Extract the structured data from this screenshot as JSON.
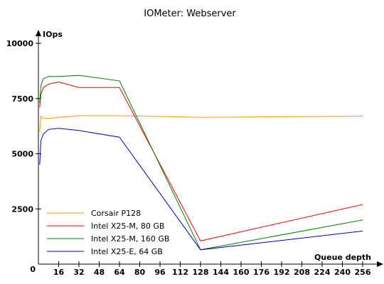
{
  "chart_data": {
    "type": "line",
    "title": "IOMeter: Webserver",
    "ylabel": "IOps",
    "xlabel": "Queue depth",
    "x_ticks": [
      0,
      16,
      32,
      48,
      64,
      80,
      96,
      112,
      128,
      144,
      160,
      176,
      192,
      208,
      224,
      240,
      256
    ],
    "y_ticks": [
      0,
      2500,
      5000,
      7500,
      10000
    ],
    "xlim": [
      0,
      262
    ],
    "ylim": [
      0,
      10000
    ],
    "grid": false,
    "legend_position": "bottom-left",
    "series": [
      {
        "name": "Corsair P128",
        "color": "#ff9900",
        "points": [
          [
            1,
            6000
          ],
          [
            2,
            6700
          ],
          [
            4,
            6600
          ],
          [
            8,
            6600
          ],
          [
            16,
            6650
          ],
          [
            32,
            6720
          ],
          [
            64,
            6720
          ],
          [
            128,
            6650
          ],
          [
            256,
            6700
          ]
        ]
      },
      {
        "name": "Intel X25-M, 80 GB",
        "color": "#ff0000",
        "points": [
          [
            1,
            7100
          ],
          [
            2,
            7700
          ],
          [
            4,
            8000
          ],
          [
            8,
            8150
          ],
          [
            16,
            8250
          ],
          [
            32,
            8000
          ],
          [
            64,
            8000
          ],
          [
            128,
            1050
          ],
          [
            256,
            2700
          ]
        ]
      },
      {
        "name": "Intel X25-M, 160 GB",
        "color": "#008000",
        "points": [
          [
            1,
            7300
          ],
          [
            2,
            8100
          ],
          [
            4,
            8400
          ],
          [
            8,
            8500
          ],
          [
            16,
            8500
          ],
          [
            32,
            8550
          ],
          [
            64,
            8300
          ],
          [
            128,
            650
          ],
          [
            256,
            2000
          ]
        ]
      },
      {
        "name": "Intel X25-E, 64 GB",
        "color": "#0000cc",
        "points": [
          [
            1,
            4500
          ],
          [
            2,
            5600
          ],
          [
            4,
            5900
          ],
          [
            8,
            6100
          ],
          [
            16,
            6150
          ],
          [
            32,
            6050
          ],
          [
            64,
            5750
          ],
          [
            128,
            650
          ],
          [
            256,
            1500
          ]
        ]
      }
    ]
  }
}
